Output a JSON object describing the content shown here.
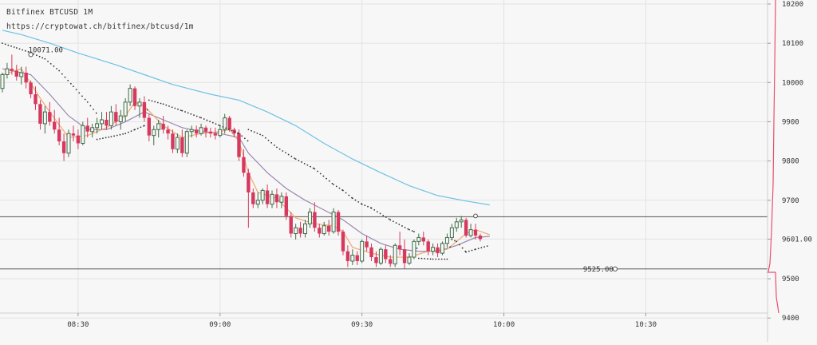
{
  "header": {
    "title": "Bitfinex BTCUSD 1M",
    "url": "https://cryptowat.ch/bitfinex/btcusd/1m"
  },
  "colors": {
    "background": "#f7f7f7",
    "up": "#3f6b46",
    "down": "#d7385e",
    "ema_fast": "#f0a96b",
    "ema_slow": "#9b86b0",
    "sma_long": "#6ec1e4",
    "psar": "#333333",
    "level_line": "#555555",
    "volume_profile": "#e8506e"
  },
  "chart_data": {
    "type": "candlestick",
    "title": "Bitfinex BTCUSD 1M",
    "ylim": [
      9385,
      10215
    ],
    "xlim": [
      "08:14",
      "09:00"
    ],
    "y_ticks": [
      "10200",
      "10100",
      "10000",
      "9900",
      "9800",
      "9700",
      "9601.00",
      "9500",
      "9400"
    ],
    "y_tick_values": [
      10200,
      10100,
      10000,
      9900,
      9800,
      9700,
      9601,
      9500,
      9400
    ],
    "x_ticks": [
      "08:30",
      "09:00",
      "09:30",
      "10:00",
      "10:30"
    ],
    "x_tick_values": [
      16,
      46,
      76,
      106,
      136
    ],
    "annotations": [
      {
        "text": "10071.00",
        "x": 6,
        "y": 10071
      },
      {
        "text": "9525.00",
        "x": 129.5,
        "y": 9525
      }
    ],
    "level_lines": [
      9658,
      9525
    ],
    "current_price": 9601.0,
    "candles": [
      [
        9985,
        10025,
        9975,
        10020
      ],
      [
        10020,
        10050,
        10010,
        10035
      ],
      [
        10035,
        10071,
        10020,
        10030
      ],
      [
        10030,
        10045,
        10005,
        10015
      ],
      [
        10015,
        10040,
        9995,
        10025
      ],
      [
        10025,
        10040,
        9985,
        10000
      ],
      [
        10000,
        10005,
        9960,
        9970
      ],
      [
        9970,
        9990,
        9930,
        9945
      ],
      [
        9945,
        9955,
        9880,
        9895
      ],
      [
        9895,
        9940,
        9870,
        9925
      ],
      [
        9925,
        9950,
        9890,
        9900
      ],
      [
        9900,
        9930,
        9870,
        9880
      ],
      [
        9880,
        9910,
        9840,
        9850
      ],
      [
        9850,
        9870,
        9800,
        9820
      ],
      [
        9820,
        9880,
        9810,
        9870
      ],
      [
        9870,
        9890,
        9850,
        9865
      ],
      [
        9865,
        9880,
        9830,
        9845
      ],
      [
        9845,
        9900,
        9840,
        9890
      ],
      [
        9890,
        9910,
        9860,
        9875
      ],
      [
        9875,
        9895,
        9860,
        9885
      ],
      [
        9885,
        9910,
        9870,
        9895
      ],
      [
        9895,
        9925,
        9880,
        9905
      ],
      [
        9905,
        9925,
        9880,
        9890
      ],
      [
        9890,
        9940,
        9880,
        9925
      ],
      [
        9925,
        9945,
        9890,
        9900
      ],
      [
        9900,
        9930,
        9880,
        9915
      ],
      [
        9915,
        9960,
        9900,
        9950
      ],
      [
        9950,
        9995,
        9940,
        9985
      ],
      [
        9985,
        9990,
        9930,
        9940
      ],
      [
        9940,
        9960,
        9910,
        9950
      ],
      [
        9950,
        9965,
        9900,
        9910
      ],
      [
        9910,
        9920,
        9850,
        9865
      ],
      [
        9865,
        9890,
        9840,
        9880
      ],
      [
        9880,
        9905,
        9860,
        9895
      ],
      [
        9895,
        9915,
        9870,
        9880
      ],
      [
        9880,
        9890,
        9855,
        9870
      ],
      [
        9870,
        9880,
        9820,
        9830
      ],
      [
        9830,
        9870,
        9820,
        9860
      ],
      [
        9860,
        9880,
        9810,
        9820
      ],
      [
        9820,
        9880,
        9810,
        9875
      ],
      [
        9875,
        9890,
        9860,
        9880
      ],
      [
        9880,
        9890,
        9860,
        9870
      ],
      [
        9870,
        9895,
        9865,
        9885
      ],
      [
        9885,
        9890,
        9860,
        9875
      ],
      [
        9875,
        9885,
        9860,
        9870
      ],
      [
        9870,
        9885,
        9855,
        9865
      ],
      [
        9865,
        9890,
        9860,
        9880
      ],
      [
        9880,
        9920,
        9870,
        9910
      ],
      [
        9910,
        9915,
        9875,
        9880
      ],
      [
        9880,
        9885,
        9860,
        9870
      ],
      [
        9870,
        9880,
        9800,
        9810
      ],
      [
        9810,
        9830,
        9760,
        9770
      ],
      [
        9770,
        9780,
        9630,
        9720
      ],
      [
        9720,
        9730,
        9680,
        9690
      ],
      [
        9690,
        9720,
        9680,
        9700
      ],
      [
        9700,
        9730,
        9690,
        9725
      ],
      [
        9725,
        9740,
        9680,
        9690
      ],
      [
        9690,
        9725,
        9680,
        9715
      ],
      [
        9715,
        9730,
        9680,
        9695
      ],
      [
        9695,
        9720,
        9680,
        9710
      ],
      [
        9710,
        9720,
        9650,
        9660
      ],
      [
        9660,
        9670,
        9605,
        9615
      ],
      [
        9615,
        9640,
        9600,
        9630
      ],
      [
        9630,
        9645,
        9605,
        9615
      ],
      [
        9615,
        9650,
        9605,
        9640
      ],
      [
        9640,
        9680,
        9630,
        9670
      ],
      [
        9670,
        9695,
        9620,
        9630
      ],
      [
        9630,
        9640,
        9605,
        9615
      ],
      [
        9615,
        9645,
        9610,
        9635
      ],
      [
        9635,
        9650,
        9610,
        9620
      ],
      [
        9620,
        9680,
        9615,
        9670
      ],
      [
        9670,
        9675,
        9610,
        9620
      ],
      [
        9620,
        9625,
        9560,
        9570
      ],
      [
        9570,
        9585,
        9530,
        9545
      ],
      [
        9545,
        9575,
        9535,
        9560
      ],
      [
        9560,
        9570,
        9535,
        9545
      ],
      [
        9545,
        9600,
        9540,
        9595
      ],
      [
        9595,
        9610,
        9570,
        9580
      ],
      [
        9580,
        9590,
        9545,
        9555
      ],
      [
        9555,
        9570,
        9530,
        9540
      ],
      [
        9540,
        9580,
        9535,
        9575
      ],
      [
        9575,
        9585,
        9540,
        9550
      ],
      [
        9550,
        9560,
        9530,
        9538
      ],
      [
        9538,
        9590,
        9530,
        9585
      ],
      [
        9585,
        9620,
        9560,
        9575
      ],
      [
        9575,
        9600,
        9525,
        9540
      ],
      [
        9540,
        9565,
        9535,
        9555
      ],
      [
        9555,
        9600,
        9550,
        9595
      ],
      [
        9595,
        9615,
        9585,
        9605
      ],
      [
        9605,
        9620,
        9585,
        9595
      ],
      [
        9595,
        9600,
        9560,
        9570
      ],
      [
        9570,
        9590,
        9560,
        9580
      ],
      [
        9580,
        9590,
        9555,
        9565
      ],
      [
        9565,
        9595,
        9560,
        9590
      ],
      [
        9590,
        9615,
        9580,
        9605
      ],
      [
        9605,
        9640,
        9600,
        9630
      ],
      [
        9630,
        9655,
        9620,
        9645
      ],
      [
        9645,
        9660,
        9630,
        9650
      ],
      [
        9650,
        9655,
        9605,
        9610
      ],
      [
        9610,
        9640,
        9605,
        9625
      ],
      [
        9625,
        9640,
        9600,
        9610
      ],
      [
        9610,
        9615,
        9595,
        9601
      ]
    ],
    "ema_fast": [
      [
        0,
        10020
      ],
      [
        4,
        10035
      ],
      [
        8,
        9960
      ],
      [
        10,
        9925
      ],
      [
        14,
        9860
      ],
      [
        18,
        9865
      ],
      [
        22,
        9885
      ],
      [
        26,
        9915
      ],
      [
        28,
        9950
      ],
      [
        30,
        9940
      ],
      [
        34,
        9890
      ],
      [
        38,
        9860
      ],
      [
        42,
        9870
      ],
      [
        46,
        9875
      ],
      [
        48,
        9880
      ],
      [
        50,
        9850
      ],
      [
        52,
        9770
      ],
      [
        54,
        9720
      ],
      [
        58,
        9705
      ],
      [
        62,
        9655
      ],
      [
        66,
        9640
      ],
      [
        70,
        9635
      ],
      [
        72,
        9620
      ],
      [
        74,
        9580
      ],
      [
        78,
        9565
      ],
      [
        82,
        9555
      ],
      [
        86,
        9555
      ],
      [
        90,
        9570
      ],
      [
        94,
        9575
      ],
      [
        98,
        9615
      ],
      [
        100,
        9625
      ],
      [
        103,
        9612
      ]
    ],
    "ema_slow": [
      [
        0,
        10035
      ],
      [
        6,
        10020
      ],
      [
        10,
        9970
      ],
      [
        14,
        9915
      ],
      [
        18,
        9880
      ],
      [
        22,
        9880
      ],
      [
        26,
        9900
      ],
      [
        30,
        9925
      ],
      [
        34,
        9905
      ],
      [
        38,
        9885
      ],
      [
        42,
        9875
      ],
      [
        46,
        9870
      ],
      [
        50,
        9860
      ],
      [
        52,
        9820
      ],
      [
        56,
        9770
      ],
      [
        60,
        9730
      ],
      [
        64,
        9700
      ],
      [
        68,
        9675
      ],
      [
        72,
        9650
      ],
      [
        76,
        9615
      ],
      [
        80,
        9590
      ],
      [
        84,
        9575
      ],
      [
        88,
        9570
      ],
      [
        92,
        9570
      ],
      [
        96,
        9585
      ],
      [
        100,
        9605
      ],
      [
        103,
        9608
      ]
    ],
    "sma_long": [
      [
        0,
        10133
      ],
      [
        4,
        10122
      ],
      [
        10,
        10100
      ],
      [
        16,
        10075
      ],
      [
        24,
        10045
      ],
      [
        30,
        10020
      ],
      [
        36,
        9995
      ],
      [
        44,
        9970
      ],
      [
        50,
        9955
      ],
      [
        56,
        9925
      ],
      [
        62,
        9890
      ],
      [
        68,
        9845
      ],
      [
        74,
        9805
      ],
      [
        80,
        9770
      ],
      [
        86,
        9737
      ],
      [
        92,
        9712
      ],
      [
        98,
        9698
      ],
      [
        103,
        9688
      ]
    ],
    "psar": [
      [
        0,
        10100
      ],
      [
        3,
        10088
      ],
      [
        6,
        10076
      ],
      [
        9,
        10060
      ],
      [
        12,
        10030
      ],
      [
        15,
        9990
      ],
      [
        18,
        9950
      ],
      [
        20,
        9920
      ],
      [
        20,
        9855
      ],
      [
        23,
        9862
      ],
      [
        26,
        9870
      ],
      [
        28,
        9880
      ],
      [
        30,
        9890
      ],
      [
        31,
        9955
      ],
      [
        34,
        9945
      ],
      [
        38,
        9928
      ],
      [
        42,
        9910
      ],
      [
        46,
        9890
      ],
      [
        50,
        9870
      ],
      [
        52,
        9850
      ],
      [
        52,
        9880
      ],
      [
        55,
        9865
      ],
      [
        58,
        9835
      ],
      [
        62,
        9805
      ],
      [
        66,
        9780
      ],
      [
        70,
        9740
      ],
      [
        72,
        9725
      ],
      [
        74,
        9705
      ],
      [
        76,
        9690
      ],
      [
        78,
        9680
      ],
      [
        82,
        9650
      ],
      [
        86,
        9625
      ],
      [
        87,
        9620
      ],
      [
        88,
        9552
      ],
      [
        91,
        9550
      ],
      [
        94,
        9550
      ],
      [
        95,
        9600
      ],
      [
        96,
        9595
      ],
      [
        98,
        9568
      ],
      [
        100,
        9575
      ],
      [
        103,
        9585
      ]
    ]
  }
}
